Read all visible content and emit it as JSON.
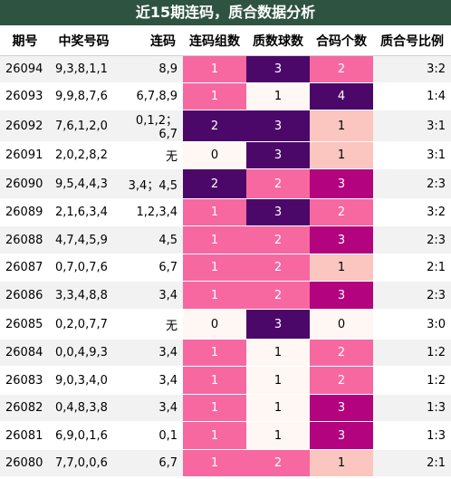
{
  "title": "近15期连码，质合数据分析",
  "headers": [
    "期号",
    "中奖号码",
    "连码",
    "连码组数",
    "质数球数",
    "合码个数",
    "质合号比例"
  ],
  "colors": {
    "title_bg": "#2f5341",
    "dark_purple": "#4b0869",
    "magenta": "#b3037e",
    "pink": "#f768a1",
    "light_pink": "#fbc5c0",
    "cream": "#fff7f3"
  },
  "rows": [
    {
      "issue": "26094",
      "numbers": "9,3,8,1,1",
      "lianma": "8,9",
      "groups": {
        "v": "1",
        "c": "pink"
      },
      "prime": {
        "v": "3",
        "c": "dark_purple"
      },
      "composite": {
        "v": "2",
        "c": "pink"
      },
      "ratio": "3:2"
    },
    {
      "issue": "26093",
      "numbers": "9,9,8,7,6",
      "lianma": "6,7,8,9",
      "groups": {
        "v": "1",
        "c": "pink"
      },
      "prime": {
        "v": "1",
        "c": "cream"
      },
      "composite": {
        "v": "4",
        "c": "dark_purple"
      },
      "ratio": "1:4"
    },
    {
      "issue": "26092",
      "numbers": "7,6,1,2,0",
      "lianma": "0,1,2；6,7",
      "groups": {
        "v": "2",
        "c": "dark_purple"
      },
      "prime": {
        "v": "3",
        "c": "dark_purple"
      },
      "composite": {
        "v": "1",
        "c": "light_pink"
      },
      "ratio": "3:1"
    },
    {
      "issue": "26091",
      "numbers": "2,0,2,8,2",
      "lianma": "无",
      "groups": {
        "v": "0",
        "c": "cream"
      },
      "prime": {
        "v": "3",
        "c": "dark_purple"
      },
      "composite": {
        "v": "1",
        "c": "light_pink"
      },
      "ratio": "3:1"
    },
    {
      "issue": "26090",
      "numbers": "9,5,4,4,3",
      "lianma": "3,4；4,5",
      "groups": {
        "v": "2",
        "c": "dark_purple"
      },
      "prime": {
        "v": "2",
        "c": "pink"
      },
      "composite": {
        "v": "3",
        "c": "magenta"
      },
      "ratio": "2:3"
    },
    {
      "issue": "26089",
      "numbers": "2,1,6,3,4",
      "lianma": "1,2,3,4",
      "groups": {
        "v": "1",
        "c": "pink"
      },
      "prime": {
        "v": "3",
        "c": "dark_purple"
      },
      "composite": {
        "v": "2",
        "c": "pink"
      },
      "ratio": "3:2"
    },
    {
      "issue": "26088",
      "numbers": "4,7,4,5,9",
      "lianma": "4,5",
      "groups": {
        "v": "1",
        "c": "pink"
      },
      "prime": {
        "v": "2",
        "c": "pink"
      },
      "composite": {
        "v": "3",
        "c": "magenta"
      },
      "ratio": "2:3"
    },
    {
      "issue": "26087",
      "numbers": "0,7,0,7,6",
      "lianma": "6,7",
      "groups": {
        "v": "1",
        "c": "pink"
      },
      "prime": {
        "v": "2",
        "c": "pink"
      },
      "composite": {
        "v": "1",
        "c": "light_pink"
      },
      "ratio": "2:1"
    },
    {
      "issue": "26086",
      "numbers": "3,3,4,8,8",
      "lianma": "3,4",
      "groups": {
        "v": "1",
        "c": "pink"
      },
      "prime": {
        "v": "2",
        "c": "pink"
      },
      "composite": {
        "v": "3",
        "c": "magenta"
      },
      "ratio": "2:3"
    },
    {
      "issue": "26085",
      "numbers": "0,2,0,7,7",
      "lianma": "无",
      "groups": {
        "v": "0",
        "c": "cream"
      },
      "prime": {
        "v": "3",
        "c": "dark_purple"
      },
      "composite": {
        "v": "0",
        "c": "cream"
      },
      "ratio": "3:0"
    },
    {
      "issue": "26084",
      "numbers": "0,0,4,9,3",
      "lianma": "3,4",
      "groups": {
        "v": "1",
        "c": "pink"
      },
      "prime": {
        "v": "1",
        "c": "cream"
      },
      "composite": {
        "v": "2",
        "c": "pink"
      },
      "ratio": "1:2"
    },
    {
      "issue": "26083",
      "numbers": "9,0,3,4,0",
      "lianma": "3,4",
      "groups": {
        "v": "1",
        "c": "pink"
      },
      "prime": {
        "v": "1",
        "c": "cream"
      },
      "composite": {
        "v": "2",
        "c": "pink"
      },
      "ratio": "1:2"
    },
    {
      "issue": "26082",
      "numbers": "0,4,8,3,8",
      "lianma": "3,4",
      "groups": {
        "v": "1",
        "c": "pink"
      },
      "prime": {
        "v": "1",
        "c": "cream"
      },
      "composite": {
        "v": "3",
        "c": "magenta"
      },
      "ratio": "1:3"
    },
    {
      "issue": "26081",
      "numbers": "6,9,0,1,6",
      "lianma": "0,1",
      "groups": {
        "v": "1",
        "c": "pink"
      },
      "prime": {
        "v": "1",
        "c": "cream"
      },
      "composite": {
        "v": "3",
        "c": "magenta"
      },
      "ratio": "1:3"
    },
    {
      "issue": "26080",
      "numbers": "7,7,0,0,6",
      "lianma": "6,7",
      "groups": {
        "v": "1",
        "c": "pink"
      },
      "prime": {
        "v": "2",
        "c": "pink"
      },
      "composite": {
        "v": "1",
        "c": "light_pink"
      },
      "ratio": "2:1"
    }
  ]
}
